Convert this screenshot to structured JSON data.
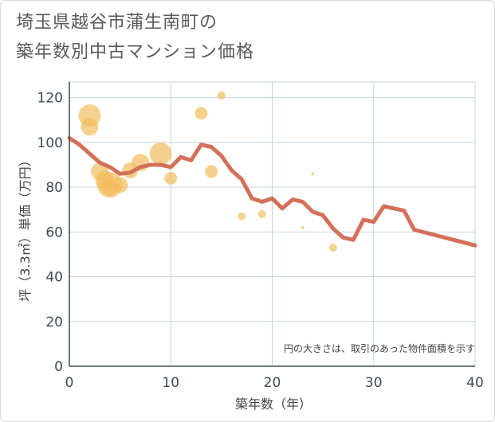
{
  "title_line1": "埼玉県越谷市蒲生南町の",
  "title_line2": "築年数別中古マンション価格",
  "chart_data": {
    "type": "scatter+line",
    "xlabel": "築年数（年）",
    "ylabel": "坪（3.3㎡）単価（万円）",
    "xlim": [
      0,
      40
    ],
    "ylim": [
      0,
      127
    ],
    "xticks": [
      0,
      10,
      20,
      30,
      40
    ],
    "yticks": [
      0,
      20,
      40,
      60,
      80,
      100,
      120
    ],
    "grid": true,
    "note": "円の大きさは、取引のあった物件面積を示す",
    "colors": {
      "line": "#d4705a",
      "bubble": "#f2bd5c",
      "grid": "#c5d3df",
      "axis": "#3f4a55"
    },
    "line_series": {
      "x": [
        0,
        1,
        2,
        3,
        4,
        5,
        6,
        7,
        8,
        9,
        10,
        11,
        12,
        13,
        14,
        15,
        16,
        17,
        18,
        19,
        20,
        21,
        22,
        23,
        24,
        25,
        26,
        27,
        28,
        29,
        30,
        31,
        32,
        33,
        34,
        40
      ],
      "y": [
        102,
        99,
        95,
        91,
        89,
        86,
        86.5,
        89,
        90,
        90,
        89,
        93.5,
        92,
        99,
        98,
        94,
        87.5,
        83.5,
        75,
        73.5,
        75,
        70.5,
        74.5,
        73.5,
        69,
        67.5,
        61.5,
        57.5,
        56.5,
        65.5,
        64.5,
        71.5,
        70.5,
        69.5,
        61,
        54
      ]
    },
    "bubbles": [
      {
        "x": 2,
        "y": 112,
        "size": 14
      },
      {
        "x": 2,
        "y": 107,
        "size": 11
      },
      {
        "x": 3,
        "y": 87,
        "size": 11
      },
      {
        "x": 3.5,
        "y": 83,
        "size": 12
      },
      {
        "x": 4,
        "y": 81,
        "size": 16
      },
      {
        "x": 4,
        "y": 80,
        "size": 11
      },
      {
        "x": 5,
        "y": 81,
        "size": 10
      },
      {
        "x": 6,
        "y": 87.5,
        "size": 10
      },
      {
        "x": 7,
        "y": 91,
        "size": 11
      },
      {
        "x": 9,
        "y": 95,
        "size": 14
      },
      {
        "x": 10,
        "y": 84,
        "size": 8
      },
      {
        "x": 13,
        "y": 113,
        "size": 8
      },
      {
        "x": 14,
        "y": 87,
        "size": 8
      },
      {
        "x": 15,
        "y": 121,
        "size": 5
      },
      {
        "x": 17,
        "y": 67,
        "size": 5
      },
      {
        "x": 19,
        "y": 68,
        "size": 5
      },
      {
        "x": 23,
        "y": 62,
        "size": 2
      },
      {
        "x": 24,
        "y": 86,
        "size": 2
      },
      {
        "x": 26,
        "y": 53,
        "size": 5
      }
    ]
  }
}
